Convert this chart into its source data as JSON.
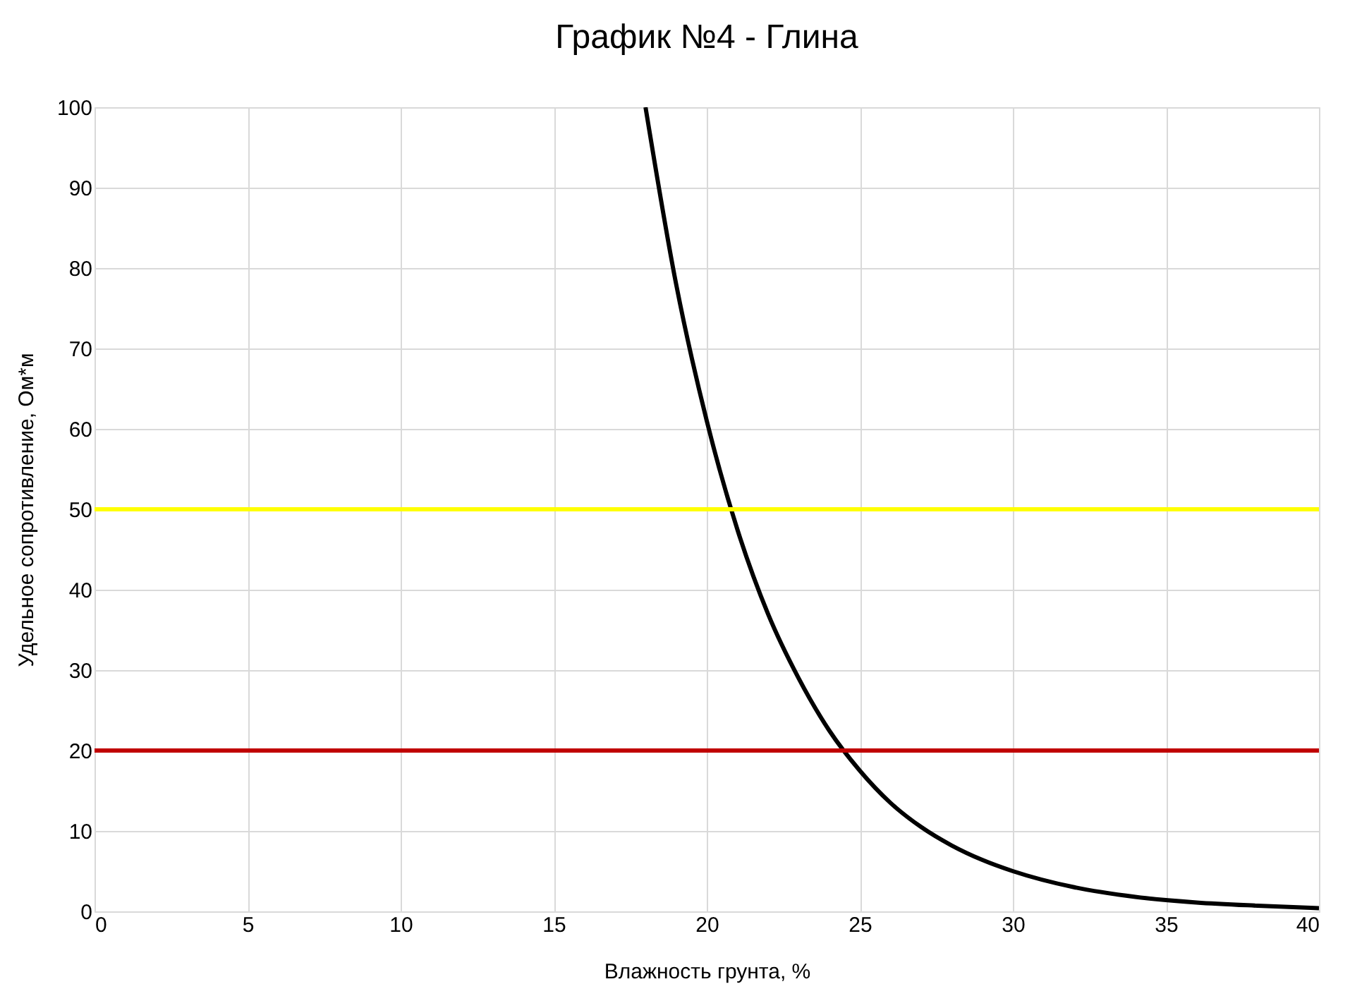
{
  "chart_data": {
    "type": "line",
    "title": "График №4 - Глина",
    "xlabel": "Влажность грунта, %",
    "ylabel": "Удельное сопротивление, Ом*м",
    "x": [
      18,
      19,
      20,
      21,
      22,
      23,
      24,
      25,
      26,
      27,
      28,
      29,
      30,
      32,
      34,
      36,
      38,
      40
    ],
    "series": [
      {
        "color": "#000000",
        "values": [
          100,
          78,
          61,
          47.5,
          37,
          29,
          22.5,
          17.5,
          13.5,
          10.5,
          8.2,
          6.4,
          5,
          3,
          1.8,
          1.1,
          0.7,
          0.4
        ]
      }
    ],
    "xlim": [
      0,
      40
    ],
    "xticks": [
      0,
      5,
      10,
      15,
      20,
      25,
      30,
      35,
      40
    ],
    "ylim": [
      0,
      100
    ],
    "yticks": [
      0,
      10,
      20,
      30,
      40,
      50,
      60,
      70,
      80,
      90,
      100
    ],
    "ref_lines": [
      {
        "axis": "y",
        "value": 50,
        "color": "#ffff00"
      },
      {
        "axis": "y",
        "value": 20,
        "color": "#c00000"
      }
    ],
    "grid": true,
    "marker": "none",
    "line_style": "solid"
  }
}
